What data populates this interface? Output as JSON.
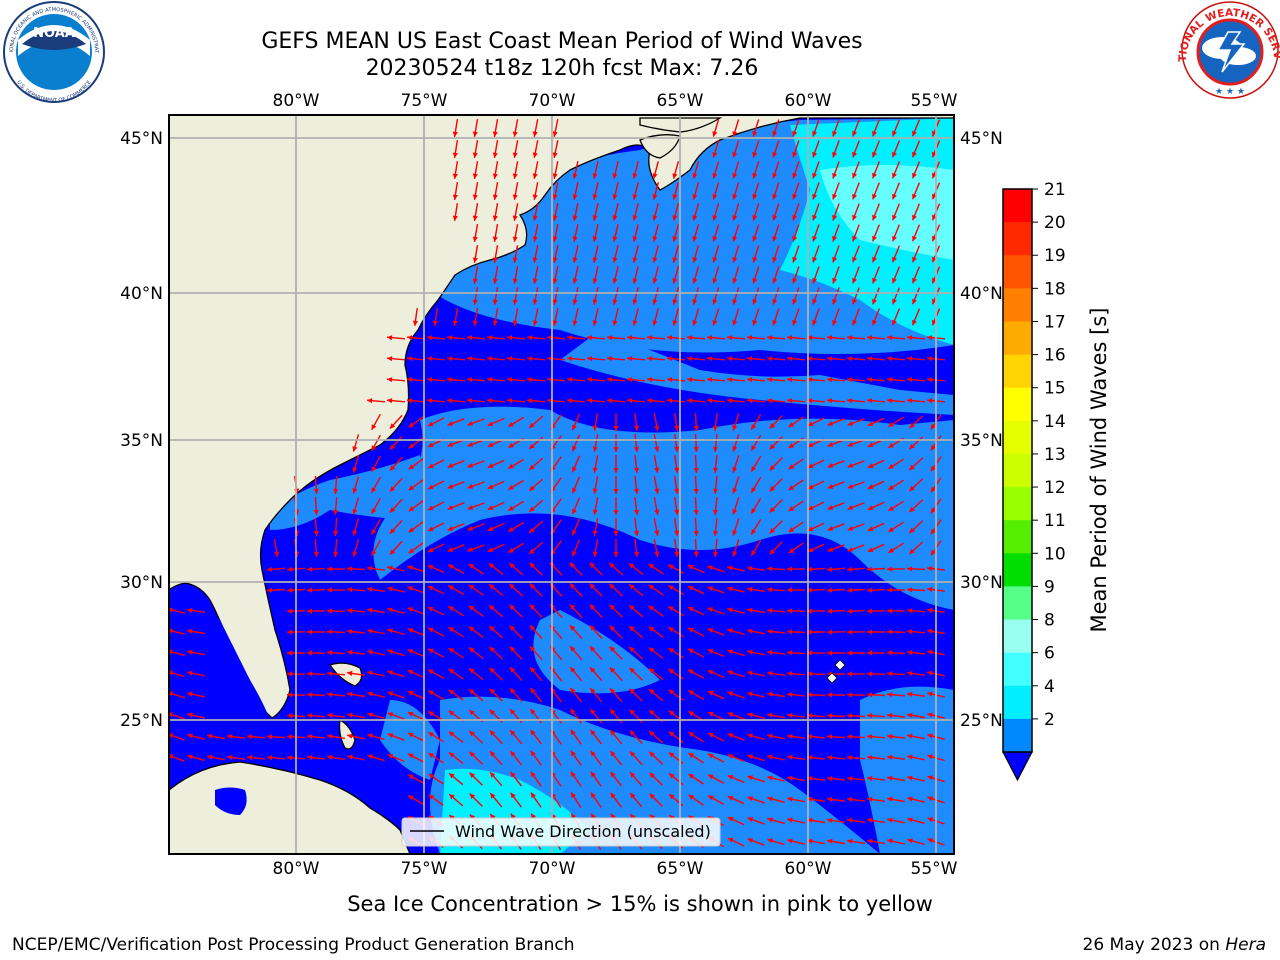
{
  "title": {
    "line1": "GEFS MEAN US East Coast Mean Period of Wind Waves",
    "line2": "20230524 t18z 120h fcst   Max: 7.26"
  },
  "logos": {
    "noaa": {
      "text": "NOAA",
      "ring_text": "NATIONAL OCEANIC AND ATMOSPHERIC ADMINISTRATION",
      "ring_text_bottom": "U.S. DEPARTMENT OF COMMERCE"
    },
    "nws": {
      "ring_text": "NATIONAL WEATHER SERVICE"
    }
  },
  "map": {
    "lon_ticks": [
      "80°W",
      "75°W",
      "70°W",
      "65°W",
      "60°W",
      "55°W"
    ],
    "lat_ticks": [
      "45°N",
      "40°N",
      "35°N",
      "30°N",
      "25°N"
    ],
    "legend_label": "Wind Wave Direction (unscaled)",
    "land_color": "#eeeedc",
    "grid_color": "#b0b0b0",
    "vector_color": "#ff0000"
  },
  "colorbar": {
    "label": "Mean Period of Wind Waves [s]",
    "ticks": [
      "21",
      "20",
      "19",
      "18",
      "17",
      "16",
      "15",
      "14",
      "13",
      "12",
      "11",
      "10",
      "9",
      "8",
      "6",
      "4",
      "2"
    ],
    "colors": [
      "#ff0000",
      "#ff2a00",
      "#ff5500",
      "#ff8000",
      "#ffaa00",
      "#ffd400",
      "#ffff00",
      "#e6ff00",
      "#ccff00",
      "#99ff00",
      "#55ee00",
      "#00dd00",
      "#55ff88",
      "#99ffee",
      "#44ffff",
      "#00eeff",
      "#0088ff"
    ],
    "extend_color": "#0000ff"
  },
  "footer": {
    "ice_note": "Sea Ice Concentration > 15% is shown in pink to yellow",
    "branch": "NCEP/EMC/Verification Post Processing Product Generation Branch",
    "date": "26 May 2023 on",
    "machine": "Hera"
  }
}
